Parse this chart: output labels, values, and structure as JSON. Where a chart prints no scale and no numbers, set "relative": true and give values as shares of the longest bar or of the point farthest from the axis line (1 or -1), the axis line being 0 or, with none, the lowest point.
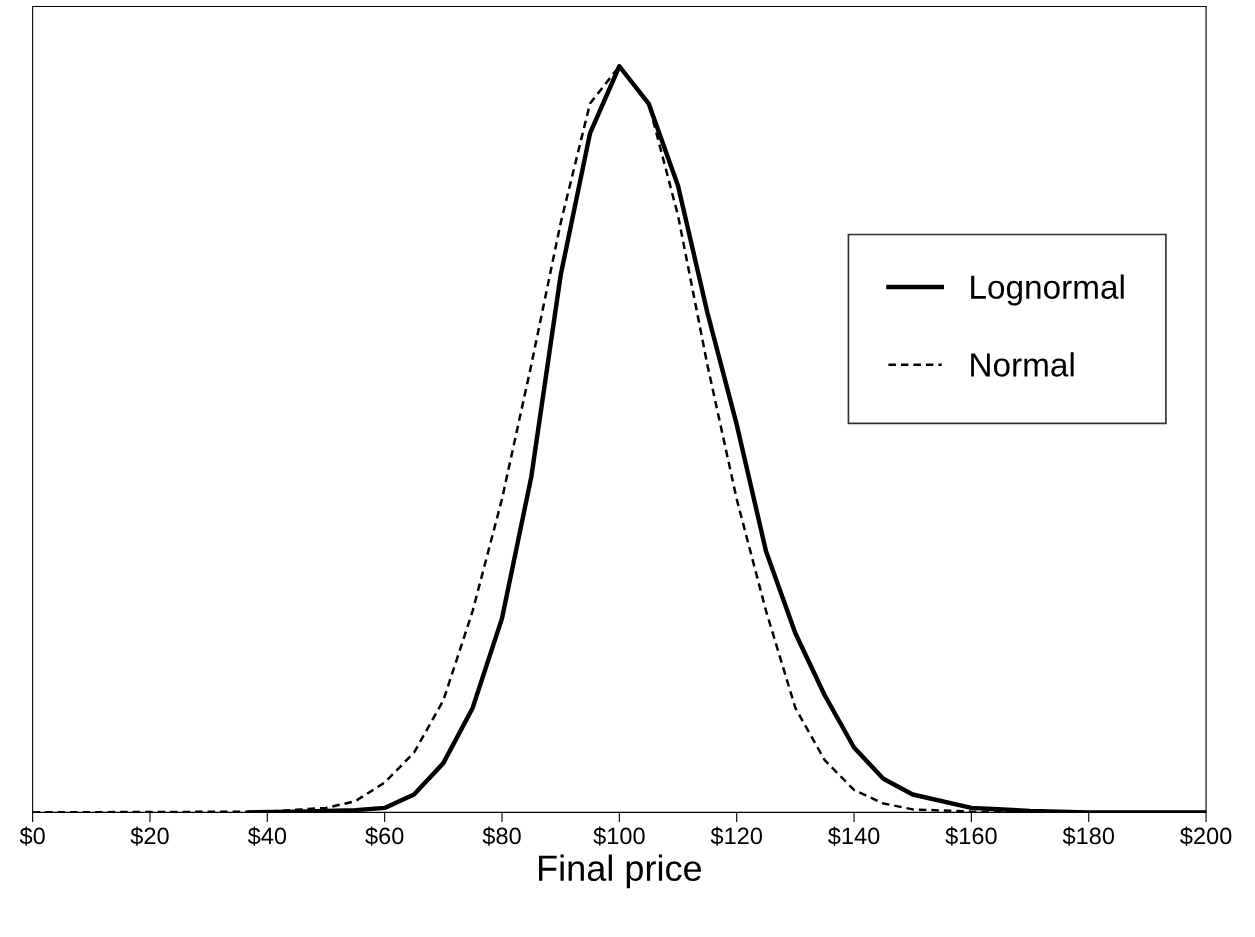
{
  "chart_data": {
    "type": "line",
    "xlabel": "Final price",
    "relative": true,
    "tick_labels": "x",
    "legend": "right",
    "grid": false,
    "xlim": [
      0,
      200
    ],
    "xticks": [
      {
        "value": 0,
        "label": "$0"
      },
      {
        "value": 20,
        "label": "$20"
      },
      {
        "value": 40,
        "label": "$40"
      },
      {
        "value": 60,
        "label": "$60"
      },
      {
        "value": 80,
        "label": "$80"
      },
      {
        "value": 100,
        "label": "$100"
      },
      {
        "value": 120,
        "label": "$120"
      },
      {
        "value": 140,
        "label": "$140"
      },
      {
        "value": 160,
        "label": "$160"
      },
      {
        "value": 180,
        "label": "$180"
      },
      {
        "value": 200,
        "label": "$200"
      }
    ],
    "series": [
      {
        "name": "Lognormal",
        "color": "#000000",
        "line_style": "solid",
        "x": [
          37,
          45,
          50,
          55,
          60,
          65,
          70,
          75,
          80,
          85,
          90,
          95,
          100,
          105,
          110,
          115,
          120,
          125,
          130,
          135,
          140,
          145,
          150,
          160,
          170,
          180,
          200
        ],
        "values": [
          0,
          0.001,
          0.002,
          0.003,
          0.006,
          0.024,
          0.066,
          0.14,
          0.26,
          0.45,
          0.72,
          0.91,
          1,
          0.95,
          0.84,
          0.67,
          0.52,
          0.35,
          0.24,
          0.157,
          0.087,
          0.045,
          0.024,
          0.006,
          0.002,
          0,
          0
        ]
      },
      {
        "name": "Normal",
        "color": "#000000",
        "line_style": "dashed",
        "x": [
          0,
          40,
          50,
          55,
          60,
          65,
          70,
          75,
          80,
          85,
          90,
          95,
          100,
          105,
          110,
          115,
          120,
          125,
          130,
          135,
          140,
          145,
          150,
          160,
          180,
          200
        ],
        "values": [
          0,
          0.001,
          0.006,
          0.015,
          0.04,
          0.08,
          0.15,
          0.27,
          0.42,
          0.6,
          0.79,
          0.95,
          1,
          0.95,
          0.8,
          0.6,
          0.42,
          0.27,
          0.14,
          0.07,
          0.03,
          0.012,
          0.004,
          0.001,
          0,
          0
        ]
      }
    ]
  }
}
